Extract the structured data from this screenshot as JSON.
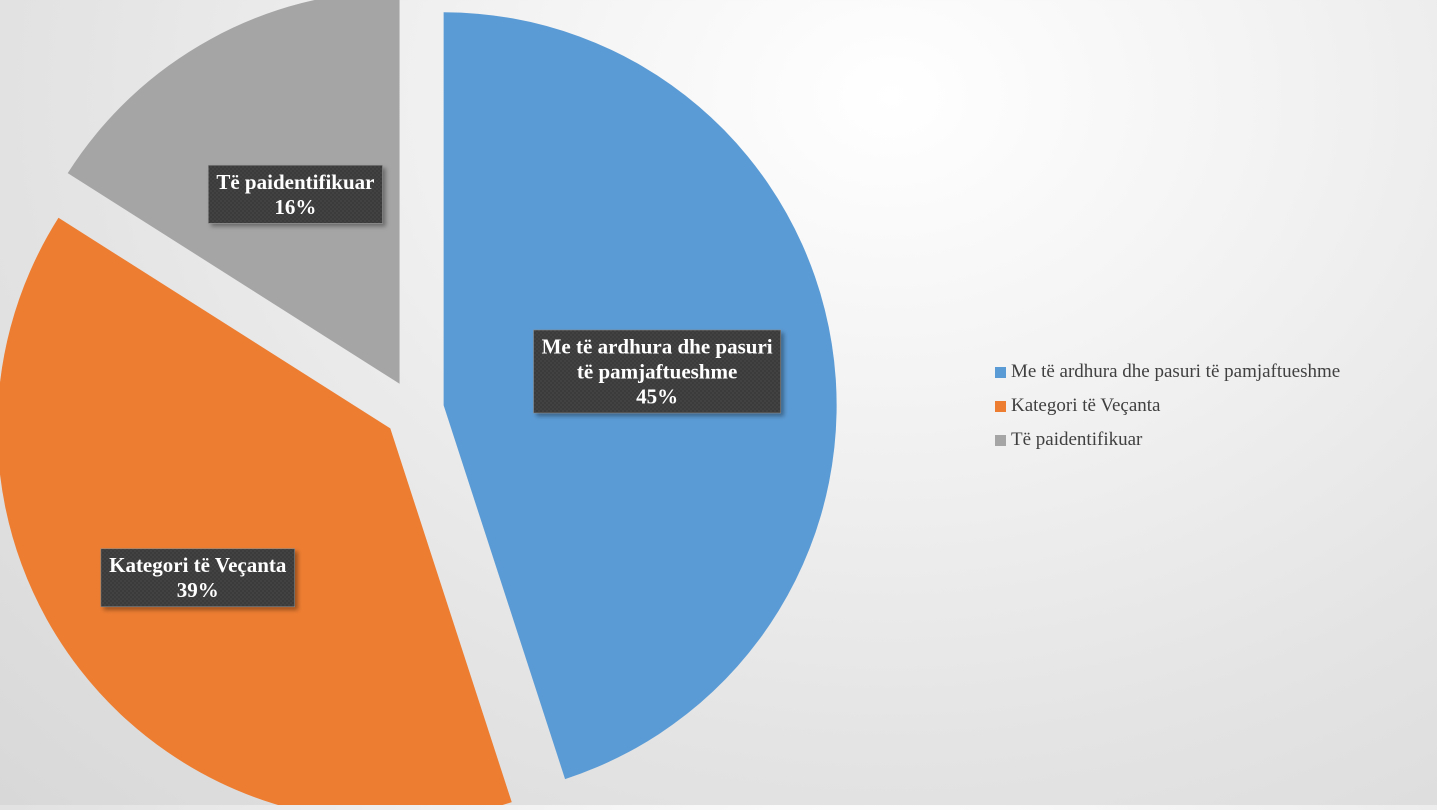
{
  "chart_data": {
    "type": "pie",
    "title": "",
    "slices": [
      {
        "label": "Me të ardhura dhe pasuri të pamjaftueshme",
        "value": 45,
        "value_label": "45%",
        "color": "#5B9BD5",
        "label_lines": [
          "Me të ardhura dhe pasuri",
          "të pamjaftueshme"
        ]
      },
      {
        "label": "Kategori të Veçanta",
        "value": 39,
        "value_label": "39%",
        "color": "#ED7D31",
        "label_lines": [
          "Kategori të Veçanta"
        ]
      },
      {
        "label": "Të paidentifikuar",
        "value": 16,
        "value_label": "16%",
        "color": "#A5A5A5",
        "label_lines": [
          "Të paidentifikuar"
        ]
      }
    ],
    "exploded": true,
    "start_angle_deg": 0,
    "direction": "clockwise",
    "legend": {
      "position": "right",
      "entries": [
        "Me të ardhura dhe pasuri të pamjaftueshme",
        "Kategori të Veçanta",
        "Të paidentifikuar"
      ]
    }
  }
}
